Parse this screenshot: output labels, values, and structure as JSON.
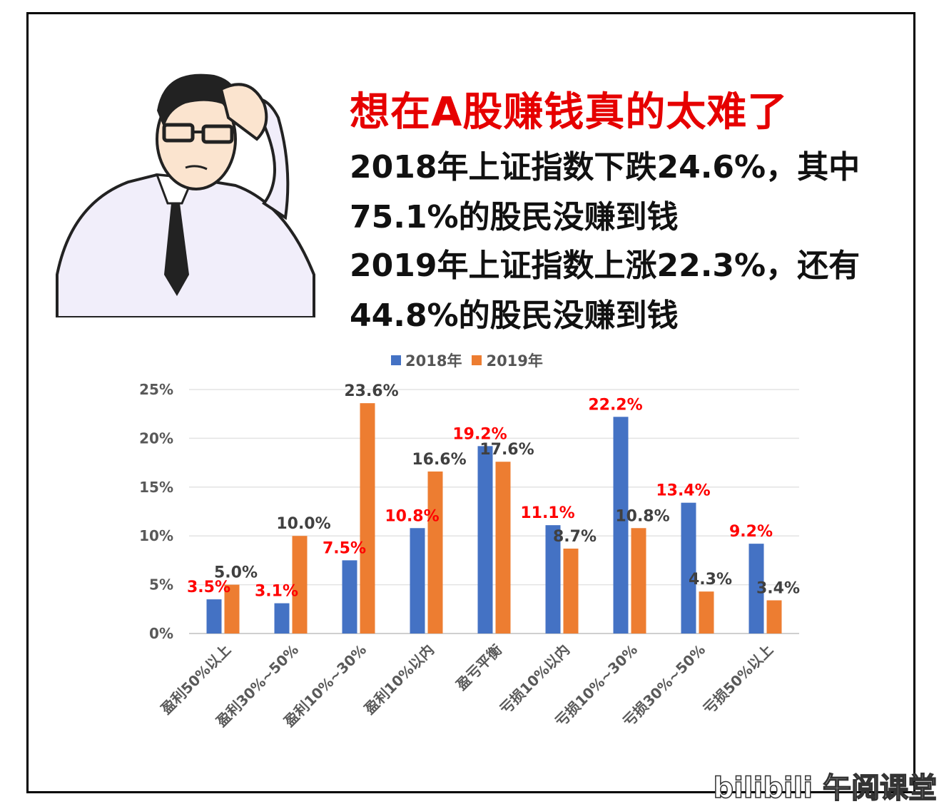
{
  "header": {
    "title": "想在A股赚钱真的太难了",
    "line1": "2018年上证指数下跌24.6%，其中",
    "line2": "75.1%的股民没赚到钱",
    "line3": "2019年上证指数上涨22.3%，还有",
    "line4": "44.8%的股民没赚到钱"
  },
  "watermark": "bilibili 午阅课堂",
  "colors": {
    "series2018": "#4472c4",
    "series2019": "#ed7d31",
    "label2018": "#ff0000",
    "label2019": "#404040"
  },
  "chart_data": {
    "type": "bar",
    "categories": [
      "盈利50%以上",
      "盈利30%~50%",
      "盈利10%~30%",
      "盈利10%以内",
      "盈亏平衡",
      "亏损10%以内",
      "亏损10%~30%",
      "亏损30%~50%",
      "亏损50%以上"
    ],
    "series": [
      {
        "name": "2018年",
        "values": [
          3.5,
          3.1,
          7.5,
          10.8,
          19.2,
          11.1,
          22.2,
          13.4,
          9.2
        ],
        "labels": [
          "3.5%",
          "3.1%",
          "7.5%",
          "10.8%",
          "19.2%",
          "11.1%",
          "22.2%",
          "13.4%",
          "9.2%"
        ]
      },
      {
        "name": "2019年",
        "values": [
          5.0,
          10.0,
          23.6,
          16.6,
          17.6,
          8.7,
          10.8,
          4.3,
          3.4
        ],
        "labels": [
          "5.0%",
          "10.0%",
          "23.6%",
          "16.6%",
          "17.6%",
          "8.7%",
          "10.8%",
          "4.3%",
          "3.4%"
        ]
      }
    ],
    "yticks": [
      "0%",
      "5%",
      "10%",
      "15%",
      "20%",
      "25%"
    ],
    "ylim": [
      0,
      25
    ],
    "grid": true,
    "legend": "top"
  }
}
